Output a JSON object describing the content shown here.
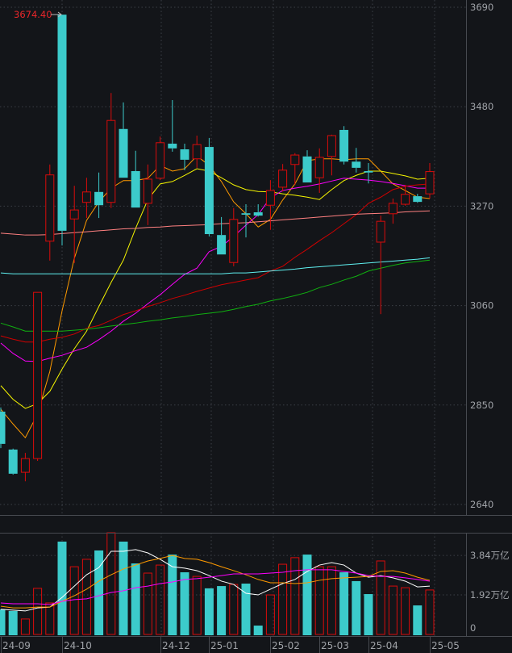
{
  "chart_data": [
    {
      "type": "candlestick",
      "pane": "price",
      "yticks": [
        "3690",
        "3480",
        "3270",
        "3060",
        "2850",
        "2640"
      ],
      "ylim": [
        2640,
        3690
      ],
      "grid": true,
      "high_marker": "3674.40",
      "colors": {
        "up": "#d90b0b",
        "down": "#3ccbcb"
      },
      "candles_ohlc": [
        [
          2836,
          2845,
          2759,
          2768
        ],
        [
          2756,
          2758,
          2703,
          2705
        ],
        [
          2708,
          2749,
          2689,
          2737
        ],
        [
          2737,
          3088,
          2732,
          3088
        ],
        [
          3196,
          3358,
          3155,
          3336
        ],
        [
          3674.4,
          3674.4,
          3187,
          3218
        ],
        [
          3243,
          3313,
          3150,
          3262
        ],
        [
          3278,
          3330,
          3245,
          3300
        ],
        [
          3300,
          3341,
          3245,
          3272
        ],
        [
          3278,
          3509,
          3266,
          3451
        ],
        [
          3433,
          3489,
          3330,
          3330
        ],
        [
          3344,
          3387,
          3267,
          3267
        ],
        [
          3276,
          3358,
          3230,
          3327
        ],
        [
          3329,
          3417,
          3325,
          3404
        ],
        [
          3402,
          3494,
          3385,
          3392
        ],
        [
          3390,
          3402,
          3346,
          3368
        ],
        [
          3370,
          3419,
          3351,
          3400
        ],
        [
          3395,
          3414,
          3206,
          3211
        ],
        [
          3209,
          3247,
          3168,
          3168
        ],
        [
          3151,
          3266,
          3143,
          3242
        ],
        [
          3255,
          3274,
          3204,
          3252
        ],
        [
          3257,
          3274,
          3248,
          3250
        ],
        [
          3272,
          3325,
          3220,
          3303
        ],
        [
          3310,
          3359,
          3301,
          3346
        ],
        [
          3358,
          3382,
          3315,
          3378
        ],
        [
          3375,
          3388,
          3320,
          3320
        ],
        [
          3330,
          3392,
          3298,
          3373
        ],
        [
          3375,
          3421,
          3335,
          3419
        ],
        [
          3431,
          3439,
          3358,
          3364
        ],
        [
          3364,
          3393,
          3341,
          3351
        ],
        [
          3344,
          3361,
          3318,
          3341
        ],
        [
          3194,
          3250,
          3042,
          3238
        ],
        [
          3254,
          3286,
          3233,
          3276
        ],
        [
          3274,
          3315,
          3271,
          3295
        ],
        [
          3291,
          3296,
          3277,
          3279
        ],
        [
          3296,
          3361,
          3286,
          3343
        ]
      ],
      "moving_averages": [
        {
          "color": "#ff9a00",
          "values": [
            2841,
            2810,
            2781,
            2831,
            2921,
            3049,
            3160,
            3240,
            3279,
            3308,
            3324,
            3324,
            3329,
            3356,
            3344,
            3349,
            3376,
            3356,
            3322,
            3279,
            3254,
            3226,
            3242,
            3283,
            3317,
            3366,
            3370,
            3370,
            3368,
            3370,
            3370,
            3344,
            3317,
            3303,
            3289,
            3286
          ]
        },
        {
          "color": "#f5f500",
          "values": [
            2891,
            2862,
            2843,
            2853,
            2879,
            2926,
            2969,
            3006,
            3058,
            3109,
            3156,
            3223,
            3284,
            3317,
            3322,
            3335,
            3349,
            3344,
            3330,
            3315,
            3305,
            3301,
            3300,
            3296,
            3293,
            3289,
            3284,
            3305,
            3324,
            3335,
            3344,
            3344,
            3339,
            3334,
            3327,
            3329
          ]
        },
        {
          "color": "#ff00ff",
          "values": [
            2981,
            2959,
            2943,
            2942,
            2949,
            2955,
            2964,
            2972,
            2988,
            3006,
            3027,
            3044,
            3064,
            3083,
            3105,
            3126,
            3139,
            3174,
            3185,
            3206,
            3230,
            3252,
            3288,
            3303,
            3308,
            3312,
            3317,
            3323,
            3329,
            3327,
            3325,
            3322,
            3318,
            3313,
            3308,
            3308
          ]
        },
        {
          "color": "#d00000",
          "values": [
            2996,
            2989,
            2983,
            2983,
            2989,
            2993,
            3000,
            3012,
            3018,
            3029,
            3041,
            3049,
            3058,
            3066,
            3075,
            3082,
            3090,
            3097,
            3104,
            3109,
            3114,
            3119,
            3133,
            3143,
            3162,
            3179,
            3197,
            3214,
            3233,
            3252,
            3276,
            3289,
            3305,
            3312,
            3315,
            3317
          ]
        },
        {
          "color": "#10b010",
          "values": [
            3023,
            3015,
            3006,
            3006,
            3006,
            3006,
            3008,
            3010,
            3013,
            3017,
            3020,
            3023,
            3027,
            3030,
            3034,
            3037,
            3041,
            3044,
            3047,
            3052,
            3058,
            3063,
            3070,
            3075,
            3081,
            3088,
            3098,
            3105,
            3114,
            3122,
            3133,
            3139,
            3145,
            3150,
            3153,
            3156
          ]
        },
        {
          "color": "#5ff0f0",
          "values": [
            3129,
            3127,
            3127,
            3127,
            3127,
            3127,
            3127,
            3127,
            3127,
            3127,
            3127,
            3127,
            3127,
            3127,
            3127,
            3127,
            3127,
            3127,
            3127,
            3129,
            3129,
            3131,
            3133,
            3135,
            3137,
            3140,
            3142,
            3144,
            3146,
            3148,
            3150,
            3152,
            3154,
            3156,
            3158,
            3161
          ]
        },
        {
          "color": "#ff8080",
          "values": [
            3213,
            3211,
            3209,
            3209,
            3210,
            3212,
            3214,
            3216,
            3218,
            3220,
            3222,
            3223,
            3225,
            3226,
            3228,
            3229,
            3230,
            3231,
            3233,
            3234,
            3235,
            3237,
            3239,
            3241,
            3243,
            3245,
            3247,
            3249,
            3251,
            3253,
            3254,
            3255,
            3256,
            3258,
            3259,
            3260
          ]
        }
      ]
    },
    {
      "type": "bar",
      "pane": "volume",
      "yticks": [
        "3.84万亿",
        "1.92万亿",
        "0"
      ],
      "ytick_values": [
        3.84,
        1.92,
        0
      ],
      "unit": "万亿",
      "values": [
        1.22,
        1.14,
        0.75,
        2.24,
        1.53,
        4.51,
        3.29,
        3.65,
        4.08,
        4.94,
        4.51,
        3.45,
        2.98,
        3.37,
        3.88,
        3.02,
        2.82,
        2.24,
        2.35,
        2.43,
        2.47,
        0.43,
        1.92,
        3.41,
        3.73,
        3.88,
        3.29,
        3.29,
        3.02,
        2.59,
        1.96,
        3.57,
        2.35,
        2.27,
        1.41,
        2.16
      ],
      "moving_averages": [
        {
          "color": "#ffffff",
          "values": [
            1.22,
            1.18,
            1.14,
            1.29,
            1.33,
            1.8,
            2.35,
            2.9,
            3.25,
            4.04,
            4.04,
            4.12,
            3.96,
            3.65,
            3.29,
            3.22,
            3.1,
            2.86,
            2.59,
            2.43,
            2.0,
            1.92,
            2.2,
            2.47,
            2.67,
            3.06,
            3.37,
            3.49,
            3.37,
            2.98,
            2.78,
            2.86,
            2.75,
            2.59,
            2.31,
            2.35
          ]
        },
        {
          "color": "#ff9a00",
          "values": [
            1.37,
            1.29,
            1.29,
            1.33,
            1.33,
            1.61,
            1.88,
            2.2,
            2.59,
            2.9,
            3.18,
            3.37,
            3.57,
            3.69,
            3.84,
            3.69,
            3.65,
            3.49,
            3.29,
            3.1,
            2.9,
            2.67,
            2.51,
            2.51,
            2.47,
            2.51,
            2.63,
            2.71,
            2.75,
            2.78,
            2.82,
            3.06,
            3.1,
            2.98,
            2.78,
            2.63
          ]
        },
        {
          "color": "#ff00ff",
          "values": [
            1.53,
            1.49,
            1.49,
            1.49,
            1.45,
            1.61,
            1.69,
            1.73,
            1.88,
            2.04,
            2.12,
            2.27,
            2.35,
            2.47,
            2.55,
            2.67,
            2.71,
            2.78,
            2.86,
            2.94,
            2.94,
            2.94,
            2.98,
            3.02,
            3.1,
            3.14,
            3.14,
            3.14,
            3.06,
            2.98,
            2.86,
            2.82,
            2.82,
            2.75,
            2.67,
            2.59
          ]
        }
      ]
    }
  ],
  "x_axis": {
    "labels": [
      {
        "text": "24-09",
        "index": 0
      },
      {
        "text": "24-10",
        "index": 5
      },
      {
        "text": "24-12",
        "index": 13
      },
      {
        "text": "25-01",
        "index": 17
      },
      {
        "text": "25-02",
        "index": 22
      },
      {
        "text": "25-03",
        "index": 26
      },
      {
        "text": "25-04",
        "index": 30
      },
      {
        "text": "25-05",
        "index": 35
      }
    ]
  }
}
